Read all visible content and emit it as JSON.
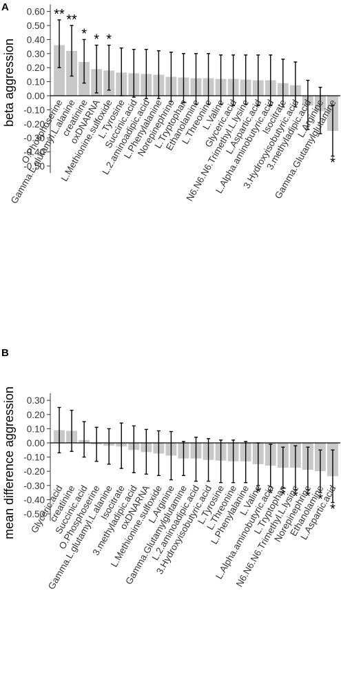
{
  "chart_data": [
    {
      "type": "bar",
      "panel": "A",
      "ylabel": "beta aggression",
      "xlabel": "",
      "title": "",
      "ylim": [
        -0.55,
        0.65
      ],
      "yticks": [
        0.6,
        0.5,
        0.4,
        0.3,
        0.2,
        0.1,
        0.0,
        -0.1,
        -0.2,
        -0.3,
        -0.4,
        -0.5
      ],
      "ytick_labels": [
        "0.60",
        "0.50",
        "0.40",
        "0.30",
        "0.20",
        "0.10",
        "0.00",
        "-0.10",
        "-0.20",
        "-0.30",
        "-0.40",
        "-0.50"
      ],
      "grid": false,
      "bar_color": "#c8c8c8",
      "categories": [
        "O.Phosphoserine",
        "Gamma.L.glutamyl.L.alanine",
        "creatinine",
        "oxDNARNA",
        "L.Methionine.sulfoxide",
        "L.Tyrosine",
        "Succinic.acid",
        "L.2.aminoadipic.acid",
        "L.Phenylalanine",
        "Norepinephrine",
        "L.Tryptophan",
        "Ethanolamine",
        "L.Threonine",
        "L.Valine",
        "Glyceric.acid",
        "N6.N6.N6.Trimethyl.L.lysine",
        "L.Aspartic.acid",
        "L.Alpha.aminobutyric.acid",
        "Isocitrate",
        "3.Hydroxyisobutyric.acid",
        "3.methyladipic.acid",
        "L.Arginine",
        "Gamma.Glutamylglutamine"
      ],
      "values": [
        0.36,
        0.32,
        0.24,
        0.19,
        0.18,
        0.165,
        0.16,
        0.155,
        0.15,
        0.135,
        0.13,
        0.125,
        0.125,
        0.12,
        0.12,
        0.115,
        0.11,
        0.11,
        0.09,
        0.075,
        -0.07,
        -0.11,
        -0.25
      ],
      "ci_lower": [
        0.2,
        0.14,
        0.09,
        0.02,
        0.04,
        0.0,
        -0.01,
        -0.02,
        -0.02,
        -0.04,
        -0.05,
        -0.06,
        -0.06,
        -0.06,
        -0.07,
        -0.06,
        -0.07,
        -0.07,
        -0.08,
        -0.08,
        -0.24,
        -0.27,
        -0.43
      ],
      "ci_upper": [
        0.54,
        0.5,
        0.4,
        0.36,
        0.36,
        0.34,
        0.33,
        0.33,
        0.32,
        0.31,
        0.3,
        0.3,
        0.3,
        0.29,
        0.29,
        0.29,
        0.29,
        0.29,
        0.26,
        0.24,
        0.11,
        0.06,
        -0.07
      ],
      "significance": [
        "**",
        "**",
        "*",
        "*",
        "*",
        "",
        "",
        "",
        "",
        "",
        "",
        "",
        "",
        "",
        "",
        "",
        "",
        "",
        "",
        "",
        "",
        "",
        "*"
      ]
    },
    {
      "type": "bar",
      "panel": "B",
      "ylabel": "mean difference aggression",
      "xlabel": "",
      "title": "",
      "ylim": [
        -0.55,
        0.35
      ],
      "yticks": [
        0.3,
        0.2,
        0.1,
        0.0,
        -0.1,
        -0.2,
        -0.3,
        -0.4,
        -0.5
      ],
      "ytick_labels": [
        "0.30",
        "0.20",
        "0.10",
        "0.00",
        "-0.10",
        "-0.20",
        "-0.30",
        "-0.40",
        "-0.50"
      ],
      "grid": false,
      "bar_color": "#c8c8c8",
      "categories": [
        "Glyceric.acid",
        "creatinine",
        "Succinic.acid",
        "O.Phosphoserine",
        "Gamma.L.glutamyl.L.alanine",
        "Isocitrate",
        "3.methyladipic.acid",
        "oxDNARNA",
        "L.Methionine.sulfoxide",
        "L.Arginine",
        "Gamma.Glutamylglutamine",
        "L.2.aminoadipic.acid",
        "3.Hydroxyisobutyric.acid",
        "L.Tyrosine",
        "L.Threonine",
        "L.Phenylalanine",
        "L.Valine",
        "L.Alpha.aminobutyric.acid",
        "L.Tryptophan",
        "N6.N6.N6.Trimethyl.L.lysine",
        "Norepinephrine",
        "Ethanolamine",
        "L.Aspartic.acid"
      ],
      "values": [
        0.09,
        0.085,
        0.02,
        -0.01,
        -0.02,
        -0.025,
        -0.05,
        -0.065,
        -0.075,
        -0.09,
        -0.11,
        -0.11,
        -0.12,
        -0.125,
        -0.13,
        -0.13,
        -0.15,
        -0.16,
        -0.175,
        -0.175,
        -0.19,
        -0.2,
        -0.235
      ],
      "ci_lower": [
        -0.07,
        -0.06,
        -0.1,
        -0.13,
        -0.15,
        -0.18,
        -0.21,
        -0.22,
        -0.23,
        -0.26,
        -0.23,
        -0.27,
        -0.27,
        -0.28,
        -0.28,
        -0.28,
        -0.3,
        -0.31,
        -0.32,
        -0.33,
        -0.33,
        -0.35,
        -0.42
      ],
      "ci_upper": [
        0.25,
        0.23,
        0.15,
        0.11,
        0.1,
        0.14,
        0.12,
        0.095,
        0.085,
        0.08,
        0.01,
        0.04,
        0.03,
        0.02,
        0.02,
        0.01,
        0.0,
        -0.01,
        -0.03,
        -0.02,
        -0.03,
        -0.05,
        -0.05
      ],
      "significance": [
        "",
        "",
        "",
        "",
        "",
        "",
        "",
        "",
        "",
        "",
        "",
        "",
        "",
        "",
        "",
        "",
        "*",
        "*",
        "*",
        "*",
        "*",
        "*",
        "*"
      ]
    }
  ]
}
